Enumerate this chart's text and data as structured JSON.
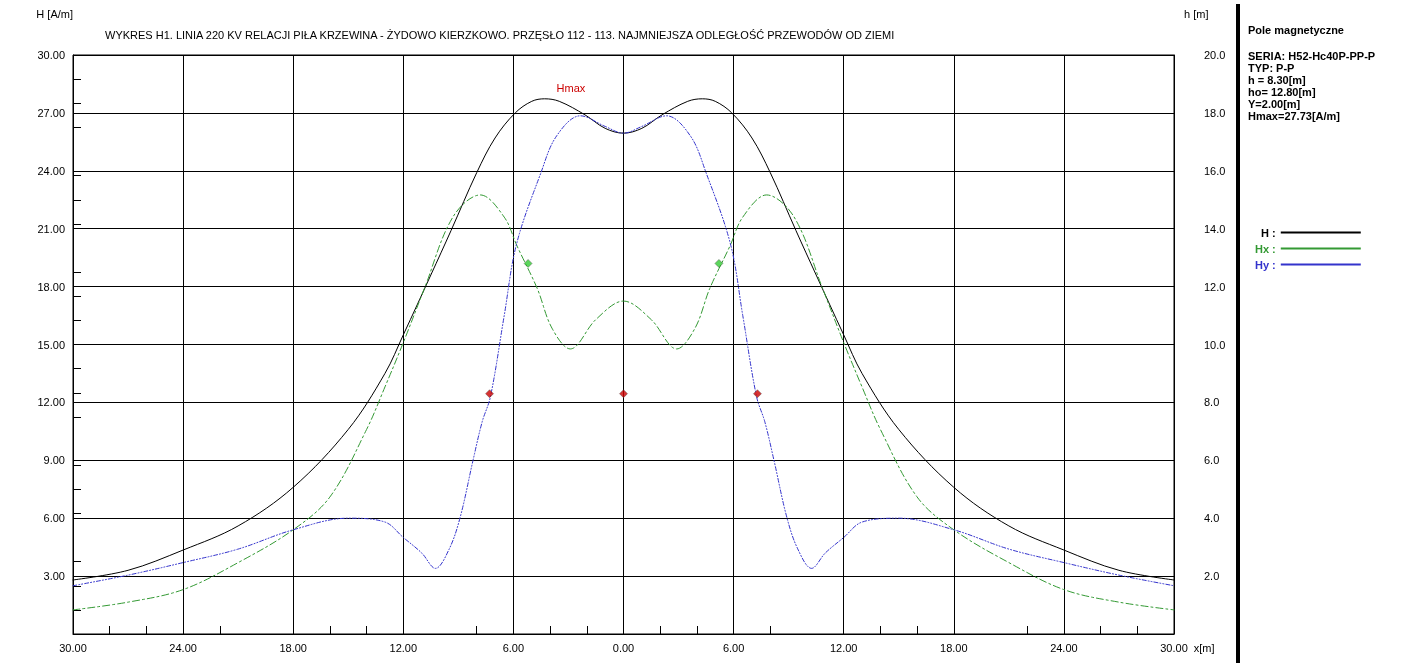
{
  "chart_data": {
    "type": "line",
    "title": "WYKRES H1. LINIA 220 KV RELACJI PIŁA KRZEWINA - ŻYDOWO KIERZKOWO. PRZĘSŁO 112 - 113. NAJMNIEJSZA ODLEGŁOŚĆ PRZEWODÓW OD ZIEMI",
    "xlabel": "x[m]",
    "ylabel": "H [A/m]",
    "y2label": "h [m]",
    "legend": "right",
    "grid": true,
    "xlim": [
      -30,
      30
    ],
    "xticks": [
      {
        "value": -30,
        "label": "30.00"
      },
      {
        "value": -24,
        "label": "24.00"
      },
      {
        "value": -18,
        "label": "18.00"
      },
      {
        "value": -12,
        "label": "12.00"
      },
      {
        "value": -6,
        "label": "6.00"
      },
      {
        "value": 0,
        "label": "0.00"
      },
      {
        "value": 6,
        "label": "6.00"
      },
      {
        "value": 12,
        "label": "12.00"
      },
      {
        "value": 18,
        "label": "18.00"
      },
      {
        "value": 24,
        "label": "24.00"
      },
      {
        "value": 30,
        "label": "30.00"
      }
    ],
    "ylim": [
      0,
      30
    ],
    "yticks": [
      {
        "value": 3,
        "label": "3.00"
      },
      {
        "value": 6,
        "label": "6.00"
      },
      {
        "value": 9,
        "label": "9.00"
      },
      {
        "value": 12,
        "label": "12.00"
      },
      {
        "value": 15,
        "label": "15.00"
      },
      {
        "value": 18,
        "label": "18.00"
      },
      {
        "value": 21,
        "label": "21.00"
      },
      {
        "value": 24,
        "label": "24.00"
      },
      {
        "value": 27,
        "label": "27.00"
      },
      {
        "value": 30,
        "label": "30.00"
      }
    ],
    "y2lim": [
      0,
      20
    ],
    "y2ticks": [
      {
        "value": 2,
        "label": "2.0"
      },
      {
        "value": 4,
        "label": "4.0"
      },
      {
        "value": 6,
        "label": "6.0"
      },
      {
        "value": 8,
        "label": "8.0"
      },
      {
        "value": 10,
        "label": "10.0"
      },
      {
        "value": 12,
        "label": "12.0"
      },
      {
        "value": 14,
        "label": "14.0"
      },
      {
        "value": 16,
        "label": "16.0"
      },
      {
        "value": 18,
        "label": "18.0"
      },
      {
        "value": 20,
        "label": "20.0"
      }
    ],
    "series": [
      {
        "name": "H :",
        "color": "#000000",
        "line_style": "solid",
        "marker": "none",
        "x": [
          -30,
          -27,
          -24,
          -21,
          -18,
          -15,
          -13,
          -12,
          -10.5,
          -9.4,
          -8,
          -7,
          -5.9,
          -5,
          -4.3,
          -3.5,
          -2.1,
          -1,
          0,
          1,
          2.1,
          3.5,
          4.3,
          5,
          5.9,
          7,
          8,
          9.4,
          10.5,
          12,
          13,
          15,
          18,
          21,
          24,
          27,
          30
        ],
        "values": [
          2.8,
          3.3,
          4.35,
          5.6,
          7.6,
          10.6,
          13.5,
          15.5,
          18.6,
          20.9,
          23.9,
          25.7,
          27,
          27.6,
          27.73,
          27.6,
          26.9,
          26.2,
          25.95,
          26.2,
          26.9,
          27.6,
          27.73,
          27.6,
          27,
          25.7,
          23.9,
          20.9,
          18.6,
          15.5,
          13.5,
          10.6,
          7.6,
          5.6,
          4.35,
          3.3,
          2.8
        ]
      },
      {
        "name": "Hx :",
        "color": "#339933",
        "line_style": "dashed",
        "marker": "none",
        "x": [
          -30,
          -27,
          -24,
          -21,
          -18,
          -16,
          -14,
          -13,
          -12,
          -10.85,
          -9.3,
          -7.8,
          -6.5,
          -5.8,
          -4.7,
          -3.9,
          -2.9,
          -1.5,
          0,
          1.5,
          2.9,
          3.9,
          4.7,
          5.8,
          6.5,
          7.8,
          9.3,
          10.85,
          12,
          13,
          14,
          16,
          18,
          21,
          24,
          27,
          30
        ],
        "values": [
          1.25,
          1.65,
          2.3,
          3.7,
          5.4,
          7.1,
          10.6,
          12.8,
          15.1,
          17.9,
          21.6,
          22.75,
          21.6,
          20.1,
          17.9,
          15.85,
          14.77,
          16.3,
          17.25,
          16.3,
          14.77,
          15.85,
          17.9,
          20.1,
          21.6,
          22.75,
          21.6,
          17.9,
          15.1,
          12.8,
          10.6,
          7.1,
          5.4,
          3.7,
          2.3,
          1.65,
          1.25
        ]
      },
      {
        "name": "Hy :",
        "color": "#3333cc",
        "line_style": "dotted",
        "marker": "none",
        "x": [
          -30,
          -27,
          -24,
          -21,
          -18,
          -15,
          -13,
          -12,
          -11,
          -10.25,
          -9.5,
          -8.9,
          -8.2,
          -7.7,
          -7.25,
          -6.5,
          -5.83,
          -4.5,
          -3.65,
          -2.35,
          -1,
          0,
          1,
          2.35,
          3.65,
          4.5,
          5.83,
          6.5,
          7.25,
          7.7,
          8.2,
          8.9,
          9.5,
          10.25,
          11,
          12,
          13,
          15,
          18,
          21,
          24,
          27,
          30
        ],
        "values": [
          2.5,
          3.05,
          3.7,
          4.4,
          5.4,
          6,
          5.8,
          5,
          4.2,
          3.4,
          4.4,
          6.05,
          9,
          11,
          12.3,
          16.5,
          20.2,
          23.9,
          25.8,
          26.85,
          26.3,
          25.95,
          26.3,
          26.85,
          25.8,
          23.9,
          20.2,
          16.5,
          12.3,
          11,
          9,
          6.05,
          4.4,
          3.4,
          4.2,
          5,
          5.8,
          6,
          5.4,
          4.4,
          3.7,
          3.05,
          2.5
        ]
      },
      {
        "type": "scatter",
        "axis": "y2",
        "color": "#cc0000",
        "marker": "diamond",
        "x": [
          -7.3,
          0,
          7.3
        ],
        "values": [
          8.3,
          8.3,
          8.3
        ]
      },
      {
        "type": "scatter",
        "axis": "y2",
        "color": "#33cc33",
        "marker": "diamond",
        "x": [
          -5.2,
          5.2
        ],
        "values": [
          12.8,
          12.8
        ]
      }
    ],
    "annotations": [
      {
        "text": "Hmax",
        "x": -4.3,
        "y": 27.73
      },
      "Pole magnetyczne",
      "SERIA: H52-Hc40P-PP-P",
      "TYP: P-P",
      "h = 8.30[m]",
      "ho= 12.80[m]",
      "Y=2.00[m]",
      "Hmax=27.73[A/m]"
    ]
  }
}
